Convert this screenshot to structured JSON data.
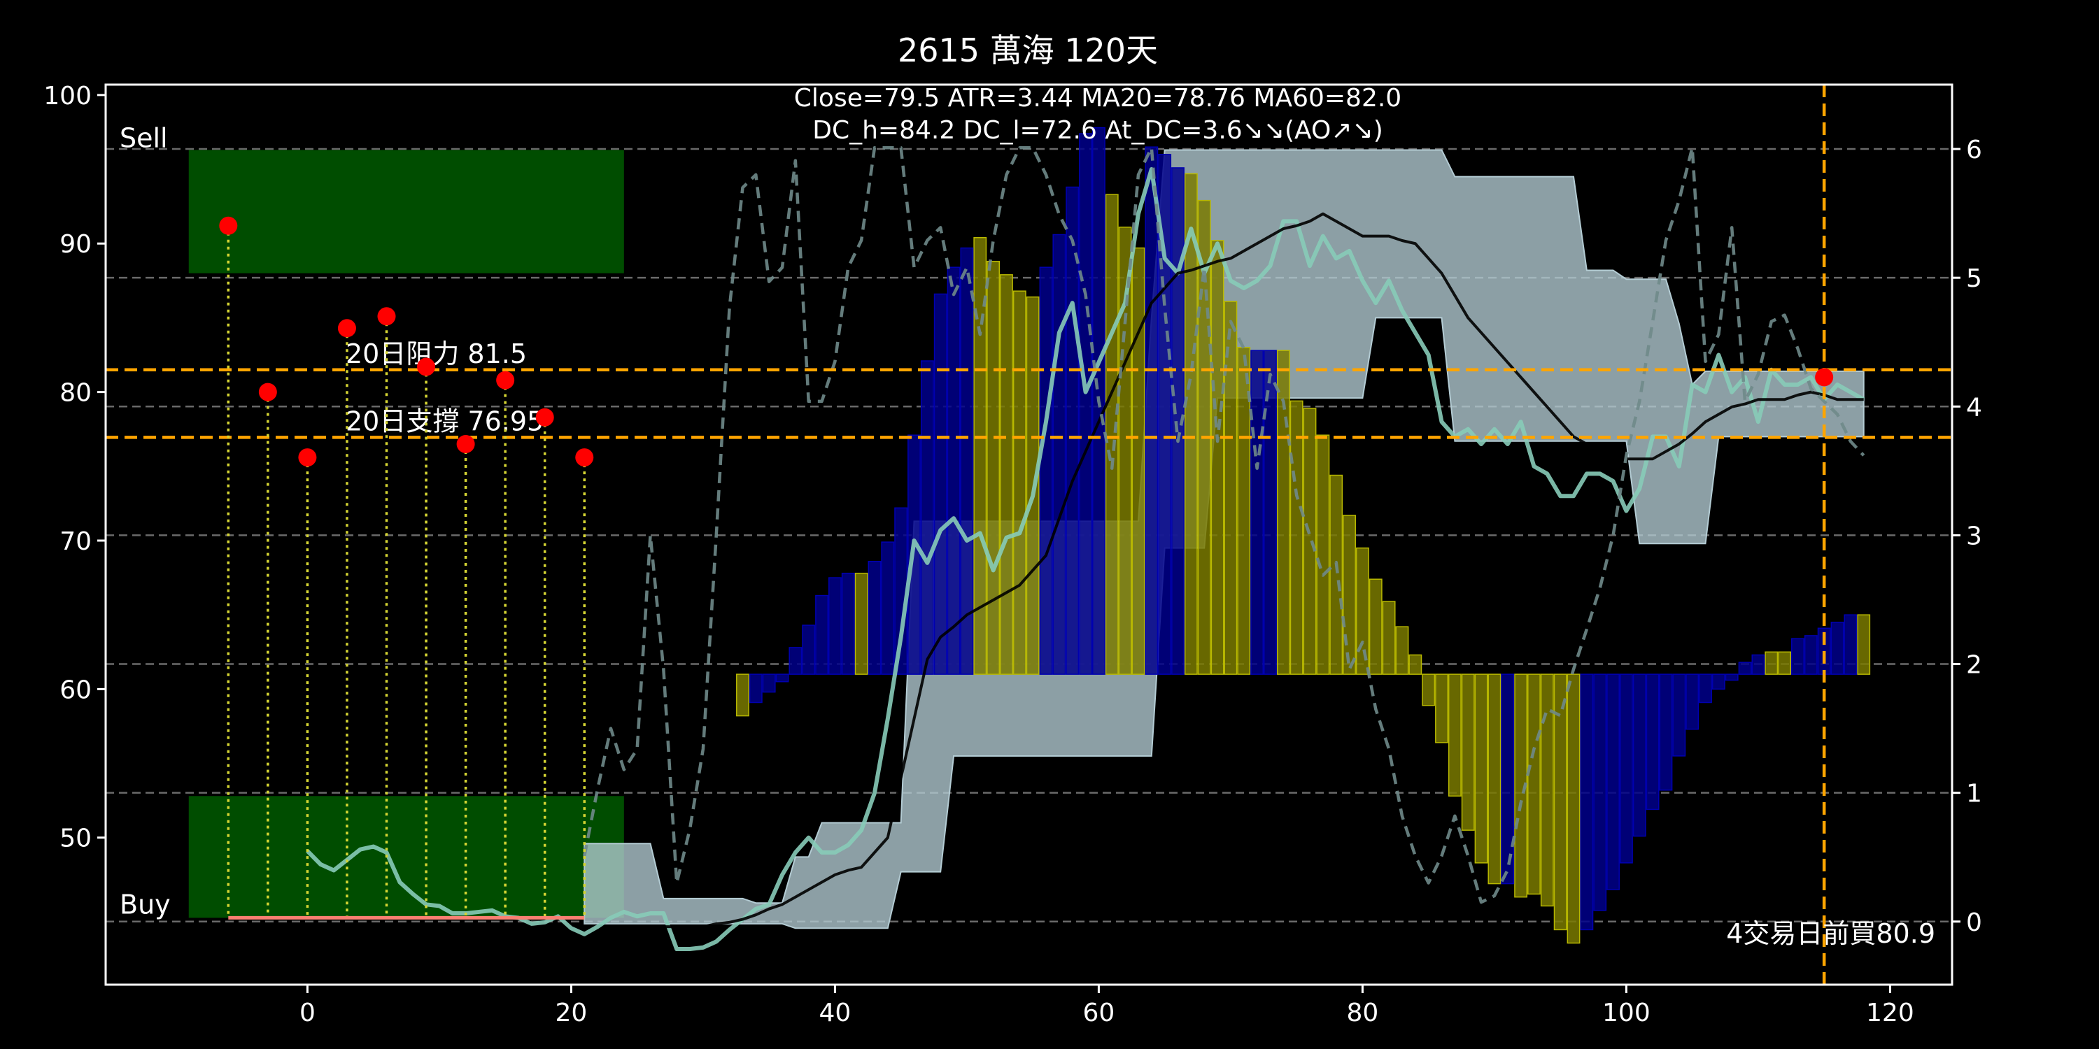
{
  "chart_data": {
    "type": "combo",
    "title": "2615 萬海 120天",
    "subtitle": [
      "Close=79.5 ATR=3.44 MA20=78.76 MA60=82.0",
      "DC_h=84.2 DC_l=72.6 At_DC=3.6↘↘(AO↗↘)"
    ],
    "xlim": [
      -15.3,
      124.7
    ],
    "xticks": [
      0,
      20,
      40,
      60,
      80,
      100,
      120
    ],
    "ylim": [
      40.1,
      100.7
    ],
    "yticks": [
      50,
      60,
      70,
      80,
      90,
      100
    ],
    "y2lim": [
      -0.49,
      6.5
    ],
    "y2ticks": [
      0,
      1,
      2,
      3,
      4,
      5,
      6
    ],
    "grid": "y2",
    "x": [
      0,
      1,
      2,
      3,
      4,
      5,
      6,
      7,
      8,
      9,
      10,
      11,
      12,
      13,
      14,
      15,
      16,
      17,
      18,
      19,
      20,
      21,
      22,
      23,
      24,
      25,
      26,
      27,
      28,
      29,
      30,
      31,
      32,
      33,
      34,
      35,
      36,
      37,
      38,
      39,
      40,
      41,
      42,
      43,
      44,
      45,
      46,
      47,
      48,
      49,
      50,
      51,
      52,
      53,
      54,
      55,
      56,
      57,
      58,
      59,
      60,
      61,
      62,
      63,
      64,
      65,
      66,
      67,
      68,
      69,
      70,
      71,
      72,
      73,
      74,
      75,
      76,
      77,
      78,
      79,
      80,
      81,
      82,
      83,
      84,
      85,
      86,
      87,
      88,
      89,
      90,
      91,
      92,
      93,
      94,
      95,
      96,
      97,
      98,
      99,
      100,
      101,
      102,
      103,
      104,
      105,
      106,
      107,
      108,
      109,
      110,
      111,
      112,
      113,
      114,
      115,
      116,
      117,
      118
    ],
    "zones": [
      {
        "label": "Sell",
        "x": [
          -9,
          24
        ],
        "y": [
          88,
          96.3
        ],
        "color": "#004d00"
      },
      {
        "label": "Buy",
        "x": [
          -9,
          24
        ],
        "y": [
          44.6,
          52.8
        ],
        "color": "#004d00"
      }
    ],
    "series": [
      {
        "kind": "band",
        "color": "#b4ccd4",
        "upper": [
          null,
          null,
          null,
          null,
          null,
          null,
          null,
          null,
          null,
          null,
          null,
          null,
          null,
          null,
          null,
          null,
          null,
          null,
          null,
          null,
          null,
          49.6,
          49.6,
          49.6,
          49.6,
          49.6,
          49.6,
          45.9,
          45.9,
          45.9,
          45.9,
          45.9,
          45.9,
          45.9,
          45.6,
          45.6,
          45.6,
          48.7,
          48.7,
          51.0,
          51.0,
          51.0,
          51.0,
          51.0,
          51.0,
          51.0,
          71.3,
          71.3,
          71.3,
          71.3,
          71.3,
          71.3,
          71.3,
          71.3,
          71.3,
          71.3,
          71.3,
          71.3,
          71.3,
          71.3,
          71.3,
          71.3,
          71.3,
          71.3,
          85.0,
          96.3,
          96.3,
          96.3,
          96.3,
          96.3,
          96.3,
          96.3,
          96.3,
          96.3,
          96.3,
          96.3,
          96.3,
          96.3,
          96.3,
          96.3,
          96.3,
          96.3,
          96.3,
          96.3,
          96.3,
          96.3,
          96.3,
          94.5,
          94.5,
          94.5,
          94.5,
          94.5,
          94.5,
          94.5,
          94.5,
          94.5,
          94.5,
          88.2,
          88.2,
          88.2,
          87.6,
          87.6,
          87.6,
          87.6,
          84.6,
          80.5,
          81.4,
          81.4,
          81.4,
          81.4,
          81.4,
          81.4,
          81.4,
          81.4,
          81.4,
          81.4,
          81.4,
          81.4,
          81.4
        ],
        "lower": [
          null,
          null,
          null,
          null,
          null,
          null,
          null,
          null,
          null,
          null,
          null,
          null,
          null,
          null,
          null,
          null,
          null,
          null,
          null,
          null,
          null,
          44.2,
          44.2,
          44.2,
          44.2,
          44.2,
          44.2,
          44.2,
          44.2,
          44.2,
          44.2,
          44.2,
          44.2,
          44.2,
          44.2,
          44.2,
          44.2,
          43.9,
          43.9,
          43.9,
          43.9,
          43.9,
          43.9,
          43.9,
          43.9,
          47.7,
          47.7,
          47.7,
          47.7,
          55.5,
          55.5,
          55.5,
          55.5,
          55.5,
          55.5,
          55.5,
          55.5,
          55.5,
          55.5,
          55.5,
          55.5,
          55.5,
          55.5,
          55.5,
          55.5,
          69.5,
          69.5,
          69.5,
          69.5,
          79.6,
          79.6,
          79.6,
          79.6,
          79.6,
          79.6,
          79.6,
          79.6,
          79.6,
          79.6,
          79.6,
          79.6,
          85.0,
          85.0,
          85.0,
          85.0,
          85.0,
          85.0,
          76.7,
          76.7,
          76.7,
          76.7,
          76.7,
          76.7,
          76.7,
          76.7,
          76.7,
          76.7,
          76.7,
          76.7,
          76.7,
          76.7,
          69.8,
          69.8,
          69.8,
          69.8,
          69.8,
          69.8,
          77.0,
          77.0,
          77.0,
          77.0,
          77.0,
          77.0,
          77.0,
          77.0,
          77.0,
          77.0,
          77.0,
          77.0
        ]
      },
      {
        "kind": "bar",
        "color": "#7a7a00",
        "edge": "#b8b800",
        "base": 61.0,
        "values": [
          null,
          null,
          null,
          null,
          null,
          null,
          null,
          null,
          null,
          null,
          null,
          null,
          null,
          null,
          null,
          null,
          null,
          null,
          null,
          null,
          null,
          null,
          null,
          null,
          null,
          null,
          null,
          null,
          null,
          null,
          null,
          null,
          null,
          58.2,
          null,
          null,
          null,
          null,
          null,
          null,
          null,
          null,
          67.8,
          null,
          null,
          null,
          null,
          null,
          null,
          null,
          null,
          90.4,
          88.8,
          87.9,
          86.8,
          86.4,
          null,
          null,
          null,
          null,
          null,
          93.3,
          91.1,
          89.7,
          null,
          null,
          null,
          94.7,
          92.9,
          90.2,
          86.1,
          83.0,
          null,
          null,
          82.8,
          79.4,
          78.9,
          77.1,
          74.4,
          71.7,
          69.5,
          67.4,
          65.9,
          64.2,
          62.3,
          58.9,
          56.4,
          52.8,
          50.5,
          48.3,
          46.9,
          null,
          46.0,
          46.2,
          45.4,
          43.8,
          42.9,
          null,
          null,
          null,
          null,
          null,
          null,
          null,
          null,
          null,
          null,
          null,
          null,
          null,
          null,
          62.5,
          62.5,
          null,
          null,
          null,
          null,
          null,
          65.0
        ]
      },
      {
        "kind": "bar",
        "color": "#00008b",
        "edge": "#0000b0",
        "base": 61.0,
        "values": [
          null,
          null,
          null,
          null,
          null,
          null,
          null,
          null,
          null,
          null,
          null,
          null,
          null,
          null,
          null,
          null,
          null,
          null,
          null,
          null,
          null,
          null,
          null,
          null,
          null,
          null,
          null,
          null,
          null,
          null,
          null,
          null,
          null,
          null,
          59.1,
          59.8,
          60.5,
          62.8,
          64.3,
          66.3,
          67.5,
          67.8,
          null,
          68.6,
          69.9,
          72.2,
          77.1,
          82.1,
          86.6,
          88.4,
          89.7,
          null,
          null,
          null,
          null,
          null,
          88.4,
          90.6,
          93.8,
          97.4,
          97.8,
          null,
          null,
          null,
          96.5,
          96.0,
          95.1,
          null,
          null,
          null,
          null,
          null,
          82.8,
          82.8,
          null,
          null,
          null,
          null,
          null,
          null,
          null,
          null,
          null,
          null,
          null,
          null,
          null,
          null,
          null,
          null,
          null,
          46.9,
          null,
          null,
          null,
          null,
          null,
          43.8,
          45.1,
          46.5,
          48.3,
          50.1,
          51.9,
          53.2,
          55.5,
          57.3,
          59.1,
          60.0,
          60.6,
          61.8,
          62.3,
          null,
          null,
          63.4,
          63.6,
          64.1,
          64.5,
          65.0,
          null
        ]
      },
      {
        "kind": "line",
        "color": "#87cbb8",
        "width": 6,
        "values": [
          49.1,
          48.2,
          47.8,
          48.5,
          49.2,
          49.4,
          49.0,
          47.0,
          46.2,
          45.5,
          45.4,
          44.9,
          44.9,
          45.0,
          45.1,
          44.7,
          44.6,
          44.2,
          44.3,
          44.7,
          43.9,
          43.5,
          44.0,
          44.6,
          45.0,
          44.7,
          44.9,
          44.9,
          42.5,
          42.5,
          42.6,
          43.0,
          43.8,
          44.5,
          45.2,
          45.5,
          47.5,
          49.0,
          50.0,
          49.0,
          49.0,
          49.5,
          50.5,
          53.0,
          58.0,
          63.5,
          70.0,
          68.5,
          70.7,
          71.5,
          70.0,
          70.5,
          68.0,
          70.2,
          70.5,
          73.0,
          78.0,
          84.0,
          86.0,
          80.0,
          82.0,
          84.0,
          86.0,
          92.0,
          95.0,
          89.0,
          88.0,
          91.0,
          88.0,
          90.0,
          87.5,
          87.0,
          87.5,
          88.5,
          91.5,
          91.5,
          88.5,
          90.5,
          89.0,
          89.5,
          87.5,
          86.0,
          87.5,
          85.5,
          84.0,
          82.5,
          78.0,
          77.0,
          77.5,
          76.5,
          77.5,
          76.5,
          78.0,
          75.0,
          74.5,
          73.0,
          73.0,
          74.5,
          74.5,
          74.0,
          72.0,
          73.5,
          77.0,
          77.0,
          75.0,
          80.5,
          80.0,
          82.5,
          80.0,
          81.0,
          78.0,
          81.5,
          80.5,
          80.5,
          81.0,
          79.5,
          80.5,
          80.0,
          79.5
        ]
      },
      {
        "kind": "line",
        "color": "#000000",
        "width": 4,
        "values": [
          null,
          null,
          null,
          null,
          null,
          null,
          null,
          null,
          null,
          null,
          null,
          null,
          null,
          null,
          null,
          null,
          null,
          null,
          null,
          null,
          null,
          null,
          null,
          null,
          null,
          null,
          null,
          44.0,
          44.0,
          44.0,
          44.0,
          44.2,
          44.3,
          44.5,
          44.8,
          45.2,
          45.5,
          46.0,
          46.5,
          47.0,
          47.5,
          47.8,
          48.0,
          49.0,
          50.0,
          54.0,
          58.0,
          62.0,
          63.5,
          64.2,
          65.0,
          65.5,
          66.0,
          66.5,
          67.0,
          68.0,
          69.0,
          71.5,
          74.0,
          76.0,
          78.0,
          80.0,
          82.0,
          84.0,
          86.0,
          87.0,
          88.0,
          88.2,
          88.5,
          88.8,
          89.0,
          89.5,
          90.0,
          90.5,
          91.0,
          91.2,
          91.5,
          92.0,
          91.5,
          91.0,
          90.5,
          90.5,
          90.5,
          90.2,
          90.0,
          89.0,
          88.0,
          86.5,
          85.0,
          84.0,
          83.0,
          82.0,
          81.0,
          80.0,
          79.0,
          78.0,
          77.0,
          76.5,
          76.0,
          75.8,
          75.5,
          75.5,
          75.5,
          76.0,
          76.5,
          77.2,
          78.0,
          78.5,
          79.0,
          79.2,
          79.5,
          79.5,
          79.5,
          79.8,
          80.0,
          79.8,
          79.5,
          79.5,
          79.5
        ]
      },
      {
        "kind": "line",
        "color": "#6f8a8a",
        "width": 4.5,
        "dash": true,
        "axis": "y2",
        "values": [
          null,
          null,
          null,
          null,
          null,
          null,
          null,
          null,
          null,
          null,
          null,
          null,
          null,
          null,
          null,
          null,
          null,
          null,
          null,
          null,
          null,
          0.51,
          1.03,
          1.5,
          1.18,
          1.34,
          3.0,
          1.96,
          0.3,
          0.72,
          1.34,
          3.0,
          4.77,
          5.7,
          5.8,
          4.97,
          5.08,
          5.91,
          4.04,
          4.04,
          4.35,
          5.08,
          5.29,
          6.01,
          6.01,
          6.01,
          5.08,
          5.29,
          5.39,
          4.87,
          5.08,
          4.56,
          5.29,
          5.8,
          6.01,
          6.01,
          5.8,
          5.49,
          5.29,
          4.87,
          4.04,
          3.52,
          4.66,
          5.8,
          6.01,
          4.77,
          3.73,
          4.25,
          5.08,
          3.73,
          4.66,
          4.45,
          3.52,
          4.25,
          4.04,
          3.31,
          3.0,
          2.69,
          2.79,
          1.96,
          2.17,
          1.65,
          1.34,
          0.82,
          0.51,
          0.3,
          0.51,
          0.82,
          0.51,
          0.15,
          0.2,
          0.4,
          0.92,
          1.34,
          1.65,
          1.6,
          1.96,
          2.27,
          2.59,
          3.0,
          3.62,
          4.04,
          4.66,
          5.29,
          5.6,
          6.01,
          4.35,
          4.56,
          5.39,
          4.04,
          4.25,
          4.66,
          4.71,
          4.45,
          4.14,
          4.04,
          3.94,
          3.73,
          3.62
        ]
      }
    ],
    "hlines": [
      {
        "value": 81.5,
        "label": "20日阻力 81.5",
        "color": "#ffa500"
      },
      {
        "value": 76.95,
        "label": "20日支撐 76.95",
        "color": "#ffa500"
      }
    ],
    "vlines": [
      {
        "value": 115,
        "color": "#ffa500"
      }
    ],
    "baseline": {
      "x": [
        -6,
        21
      ],
      "value": 44.6,
      "color": "#fa8072"
    },
    "signals": {
      "color": "#ff0000",
      "stem_color": "#d4d433",
      "stem_to": 44.6,
      "x": [
        -6,
        -3,
        0,
        3,
        6,
        9,
        12,
        15,
        18,
        21
      ],
      "values": [
        91.2,
        80.0,
        75.6,
        84.3,
        85.1,
        81.7,
        76.5,
        80.8,
        78.3,
        75.6
      ]
    },
    "last_signal": {
      "x": 115,
      "value": 81.0,
      "color": "#ff0000"
    },
    "note": "4交易日前買80.9"
  }
}
